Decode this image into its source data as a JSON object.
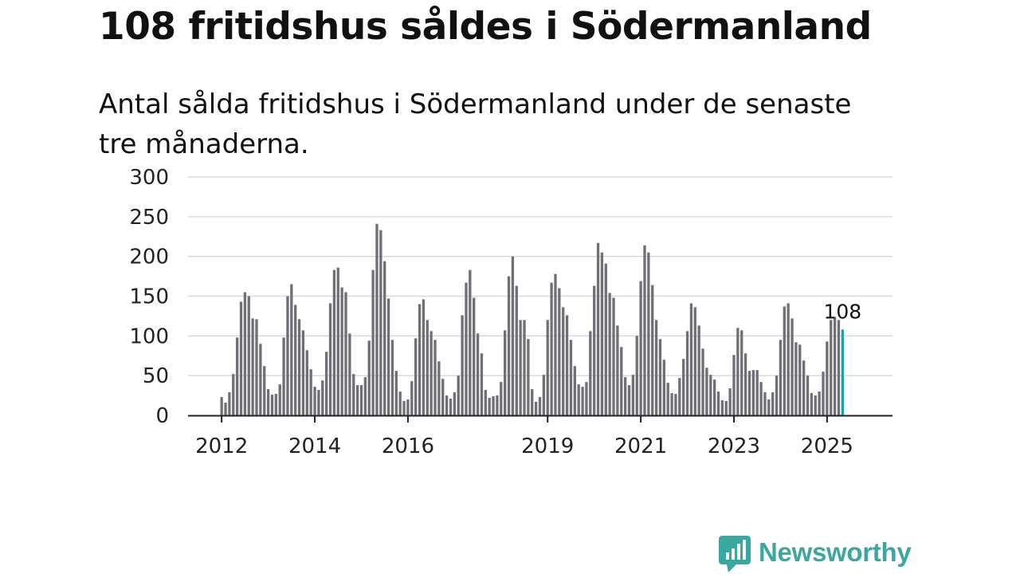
{
  "title": "108 fritidshus såldes i Södermanland",
  "subtitle": "Antal sålda fritidshus i Södermanland under de senaste tre månaderna.",
  "brand": {
    "name": "Newsworthy",
    "color": "#3aa7a0",
    "icon": "newsworthy-chat-chart-icon"
  },
  "colors": {
    "bar": "#6f6f75",
    "highlight": "#1aa3a3",
    "grid": "#d9d9d9",
    "axis": "#222222"
  },
  "chart_data": {
    "type": "bar",
    "title": "108 fritidshus såldes i Södermanland",
    "xlabel": "",
    "ylabel": "",
    "ylim": [
      0,
      300
    ],
    "yticks": [
      0,
      50,
      100,
      150,
      200,
      250,
      300
    ],
    "xticks": [
      "2012",
      "2014",
      "2016",
      "2019",
      "2021",
      "2023",
      "2025"
    ],
    "grid": true,
    "highlight_label": "108",
    "series": [
      {
        "name": "Antal sålda fritidshus",
        "start": "2012-01",
        "values": [
          23,
          16,
          29,
          52,
          98,
          143,
          155,
          150,
          122,
          121,
          90,
          62,
          33,
          26,
          27,
          39,
          98,
          150,
          165,
          139,
          121,
          107,
          82,
          58,
          36,
          32,
          44,
          80,
          141,
          183,
          186,
          161,
          155,
          103,
          52,
          38,
          38,
          48,
          94,
          183,
          241,
          233,
          194,
          147,
          95,
          56,
          30,
          18,
          20,
          43,
          97,
          140,
          146,
          120,
          106,
          95,
          68,
          46,
          25,
          21,
          29,
          50,
          126,
          167,
          183,
          148,
          103,
          78,
          32,
          22,
          24,
          25,
          42,
          107,
          175,
          200,
          163,
          120,
          120,
          96,
          33,
          17,
          23,
          51,
          120,
          167,
          178,
          160,
          136,
          126,
          95,
          62,
          39,
          36,
          42,
          106,
          163,
          217,
          205,
          191,
          154,
          148,
          113,
          86,
          48,
          38,
          51,
          100,
          169,
          214,
          205,
          164,
          120,
          96,
          70,
          41,
          28,
          27,
          47,
          71,
          106,
          141,
          136,
          113,
          84,
          60,
          51,
          45,
          30,
          19,
          18,
          34,
          76,
          110,
          107,
          78,
          56,
          57,
          57,
          42,
          29,
          20,
          29,
          50,
          95,
          137,
          141,
          122,
          92,
          89,
          69,
          50,
          28,
          25,
          30,
          55,
          93,
          120,
          124,
          120,
          108
        ]
      }
    ]
  }
}
